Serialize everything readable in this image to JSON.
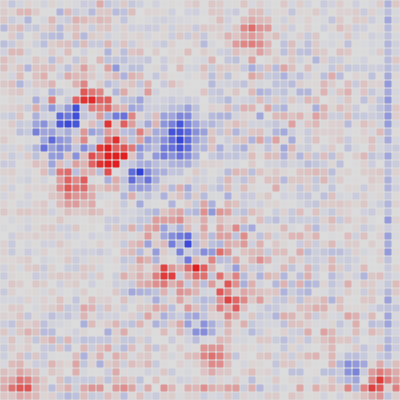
{
  "chart_data": {
    "type": "heatmap",
    "grid": {
      "rows": 50,
      "cols": 50
    },
    "value_range": [
      -1,
      1
    ],
    "colors": {
      "background": "#dcdcdc",
      "negative": "#2f3fd8",
      "positive": "#e02020",
      "neutral": "#dcdcdc"
    },
    "hotspots": [
      {
        "row": 19,
        "col": 13,
        "value": 1.0,
        "spread": 1.1
      },
      {
        "row": 19,
        "col": 14,
        "value": 1.0,
        "spread": 1.1
      },
      {
        "row": 12,
        "col": 11,
        "value": 0.75,
        "spread": 1.4
      },
      {
        "row": 14,
        "col": 9,
        "value": -0.75,
        "spread": 1.3
      },
      {
        "row": 16,
        "col": 6,
        "value": -0.65,
        "spread": 1.6
      },
      {
        "row": 21,
        "col": 17,
        "value": -0.8,
        "spread": 1.5
      },
      {
        "row": 18,
        "col": 22,
        "value": -0.8,
        "spread": 1.6
      },
      {
        "row": 15,
        "col": 22,
        "value": -0.6,
        "spread": 1.6
      },
      {
        "row": 23,
        "col": 9,
        "value": 0.55,
        "spread": 1.8
      },
      {
        "row": 31,
        "col": 23,
        "value": -0.8,
        "spread": 1.4
      },
      {
        "row": 33,
        "col": 24,
        "value": 0.7,
        "spread": 1.5
      },
      {
        "row": 34,
        "col": 20,
        "value": 0.6,
        "spread": 1.4
      },
      {
        "row": 37,
        "col": 28,
        "value": 0.55,
        "spread": 1.6
      },
      {
        "row": 40,
        "col": 25,
        "value": -0.6,
        "spread": 1.3
      },
      {
        "row": 44,
        "col": 26,
        "value": 0.55,
        "spread": 1.3
      },
      {
        "row": 47,
        "col": 47,
        "value": 0.8,
        "spread": 1.4
      },
      {
        "row": 46,
        "col": 44,
        "value": -0.6,
        "spread": 1.2
      },
      {
        "row": 4,
        "col": 31,
        "value": 0.45,
        "spread": 1.6
      },
      {
        "row": 47,
        "col": 2,
        "value": 0.45,
        "spread": 1.3
      }
    ],
    "texture": [
      {
        "row": 16,
        "col": 12,
        "radius": 9,
        "amplitude": 0.55
      },
      {
        "row": 32,
        "col": 24,
        "radius": 10,
        "amplitude": 0.45
      },
      {
        "row": 14,
        "col": 34,
        "radius": 14,
        "amplitude": 0.22
      },
      {
        "row": 38,
        "col": 38,
        "radius": 12,
        "amplitude": 0.2
      },
      {
        "row": 6,
        "col": 8,
        "radius": 12,
        "amplitude": 0.2
      },
      {
        "row": 44,
        "col": 10,
        "radius": 10,
        "amplitude": 0.22
      }
    ],
    "right_edge_column": {
      "col": 48,
      "value": -0.3
    },
    "bottom_edge_row": {
      "row": 48,
      "value": 0.25
    }
  }
}
